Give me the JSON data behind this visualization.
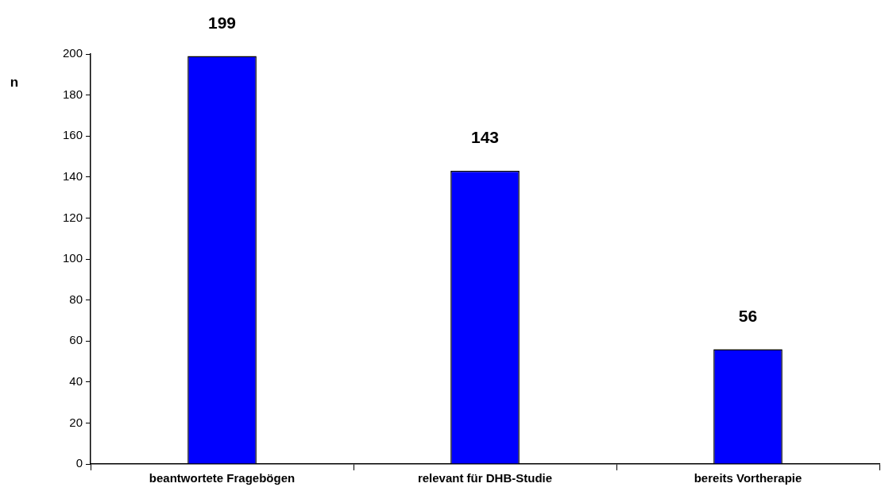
{
  "chart_data": {
    "type": "bar",
    "ylabel": "n",
    "categories": [
      "beantwortete Fragebögen",
      "relevant für DHB-Studie",
      "bereits Vortherapie"
    ],
    "values": [
      199,
      143,
      56
    ],
    "color": "#0000ff",
    "ylim": [
      0,
      200
    ],
    "yticks": [
      0,
      20,
      40,
      60,
      80,
      100,
      120,
      140,
      160,
      180,
      200
    ],
    "grid": false,
    "legend": false,
    "data_labels": true
  }
}
